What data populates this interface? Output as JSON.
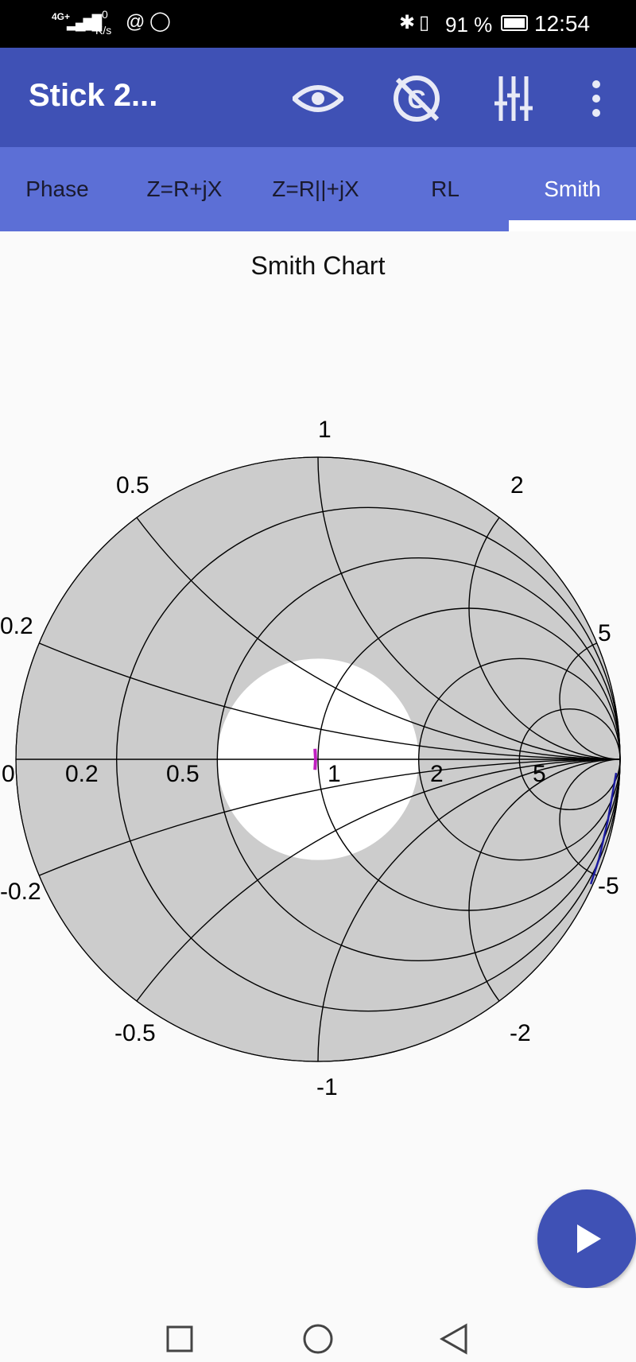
{
  "status_bar": {
    "network": "4G+",
    "speed_value": "0",
    "speed_unit": "K/s",
    "battery": "91 %",
    "time": "12:54"
  },
  "app_bar": {
    "title": "Stick 2...",
    "icons": [
      "eye-icon",
      "no-c-icon",
      "equalizer-icon",
      "more-vert-icon"
    ]
  },
  "tabs": [
    {
      "label": "Phase"
    },
    {
      "label": "Z=R+jX"
    },
    {
      "label": "Z=R||+jX"
    },
    {
      "label": "RL"
    },
    {
      "label": "Smith",
      "active": true
    }
  ],
  "colors": {
    "app_bar": "#3f51b5",
    "tabs": "#5c6fd6",
    "chart_fill": "#cccccc",
    "vswr_circle": "#ffffff",
    "trace1": "#c020c0",
    "trace2": "#1a1aa0"
  },
  "chart_data": {
    "type": "smith",
    "title": "Smith Chart",
    "resistance_circles": [
      0.2,
      0.5,
      1,
      2,
      5
    ],
    "reactance_arcs": [
      0.2,
      0.5,
      1,
      2,
      5,
      -0.2,
      -0.5,
      -1,
      -2,
      -5
    ],
    "vswr_highlight": 2,
    "labels": {
      "top": "1",
      "upper_left": "0.5",
      "upper_right": "2",
      "left_upper": "0.2",
      "right_upper": "5",
      "axis": [
        "0",
        "0.2",
        "0.5",
        "1",
        "2",
        "5"
      ],
      "left_lower": "-0.2",
      "right_lower": "-5",
      "lower_left": "-0.5",
      "lower_right": "-2",
      "bottom": "-1"
    },
    "traces_gamma": [
      {
        "color": "#c020c0",
        "points": [
          [
            -0.01,
            0.035
          ],
          [
            -0.008,
            0.0
          ],
          [
            -0.01,
            -0.035
          ]
        ]
      },
      {
        "color": "#1a1aa0",
        "points": [
          [
            0.987,
            -0.045
          ],
          [
            0.96,
            -0.2
          ],
          [
            0.93,
            -0.33
          ],
          [
            0.903,
            -0.413
          ]
        ]
      }
    ]
  },
  "fab": {
    "icon": "play-icon"
  },
  "nav_bar": {
    "icons": [
      "recents-icon",
      "home-icon",
      "back-icon"
    ]
  }
}
